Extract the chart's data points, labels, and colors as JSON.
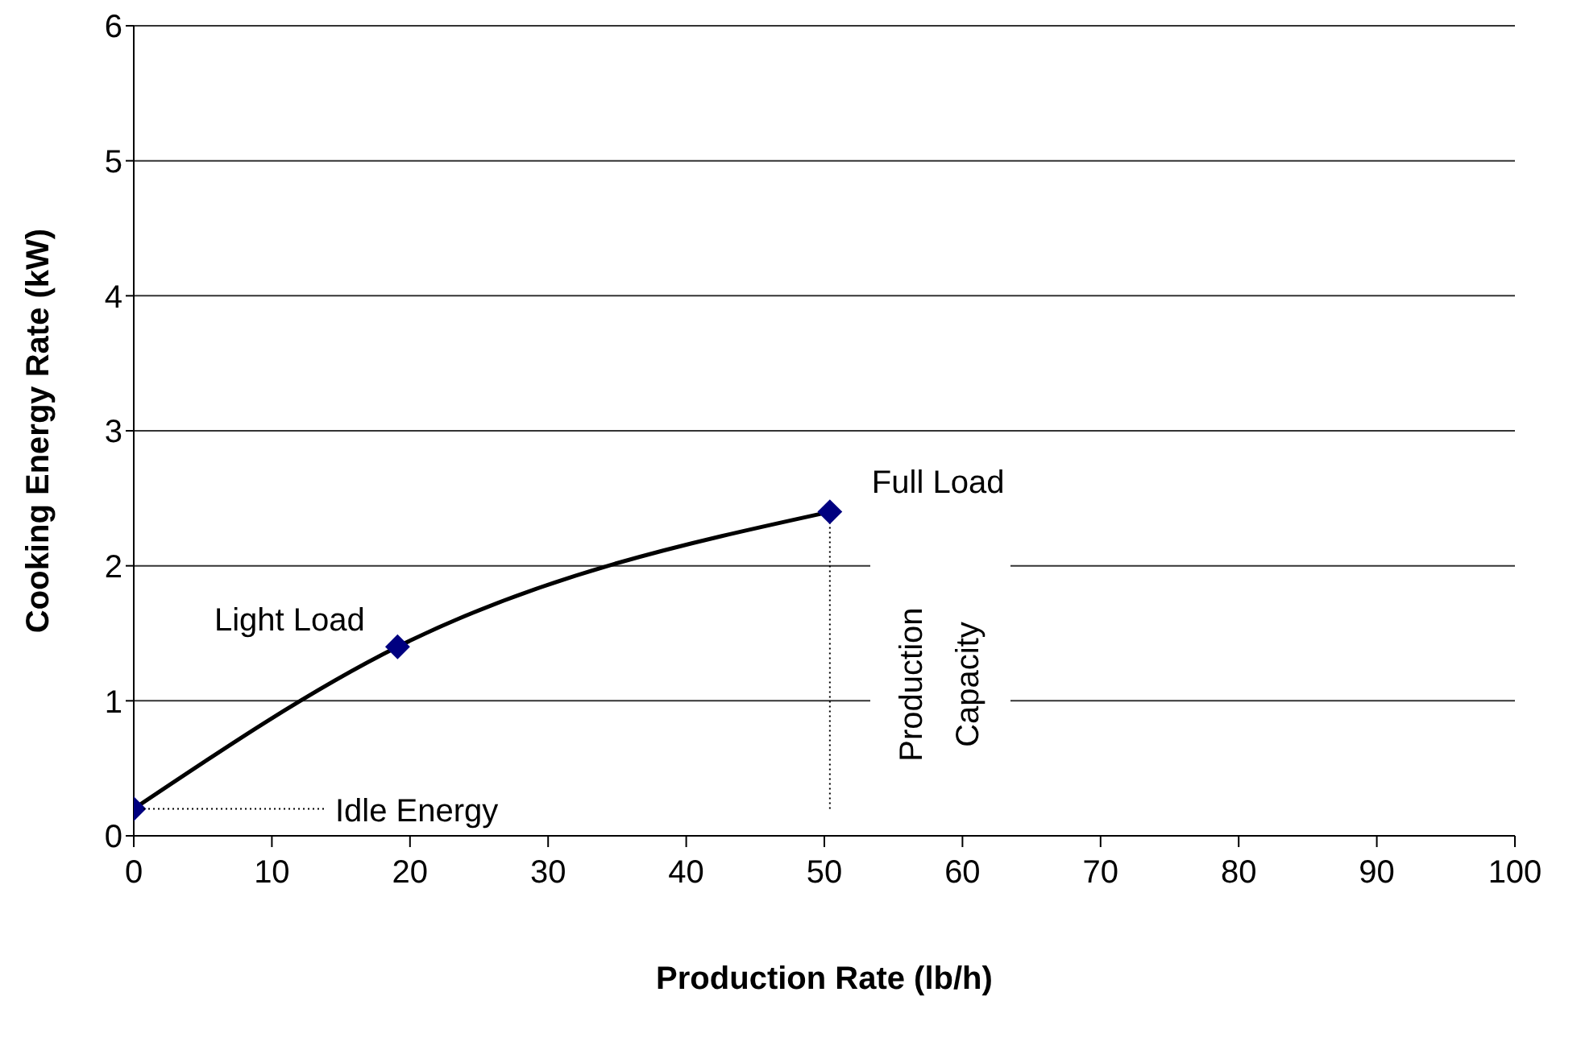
{
  "chart_data": {
    "type": "scatter",
    "xlabel": "Production Rate (lb/h)",
    "ylabel": "Cooking Energy Rate (kW)",
    "series": [
      {
        "type": "line",
        "color": "#000000",
        "x": [
          0,
          19.1,
          50.4
        ],
        "values": [
          0.2,
          1.4,
          2.4
        ],
        "marker": "none"
      },
      {
        "type": "line",
        "color": "#000000",
        "x": [
          50.4,
          50.4
        ],
        "values": [
          0.2,
          2.4
        ],
        "marker": "none",
        "line_style": "dotted"
      },
      {
        "color": "#000080",
        "x": [
          0,
          19.1,
          50.4
        ],
        "values": [
          0.2,
          1.4,
          2.4
        ],
        "marker": "diamond"
      }
    ],
    "annotations": [
      {
        "text": "Idle Energy",
        "x": 0,
        "y": 0.2
      },
      {
        "text": "Light Load",
        "x": 19.1,
        "y": 1.4
      },
      {
        "text": "Full Load",
        "x": 50.4,
        "y": 2.4
      },
      "Production Capacity"
    ],
    "xlim": [
      0,
      100
    ],
    "xticks": [
      0,
      10,
      20,
      30,
      40,
      50,
      60,
      70,
      80,
      90,
      100
    ],
    "ylim": [
      0,
      6
    ],
    "yticks": [
      0,
      1,
      2,
      3,
      4,
      5,
      6
    ],
    "grid": "y"
  }
}
